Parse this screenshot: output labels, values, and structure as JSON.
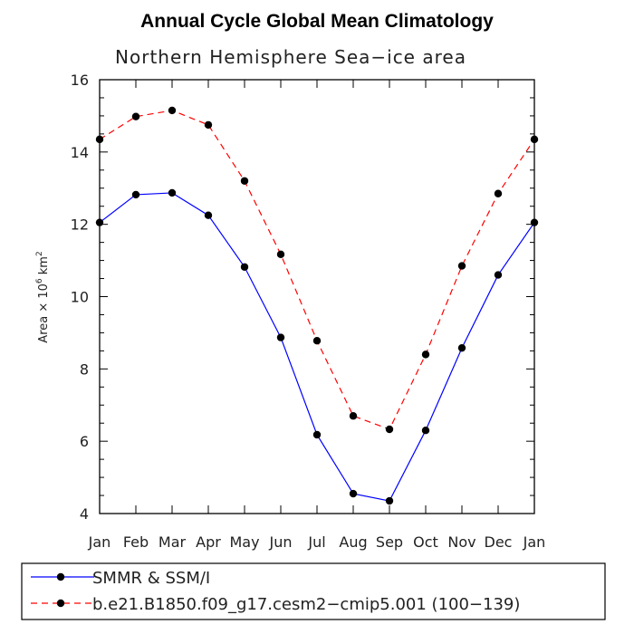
{
  "chart_data": {
    "type": "line",
    "title": "Annual Cycle Global Mean Climatology",
    "subtitle": "Northern Hemisphere Sea−ice area",
    "ylabel": {
      "prefix": "Area × 10",
      "exp1": "6",
      "unit": " km",
      "exp2": "2"
    },
    "categories": [
      "Jan",
      "Feb",
      "Mar",
      "Apr",
      "May",
      "Jun",
      "Jul",
      "Aug",
      "Sep",
      "Oct",
      "Nov",
      "Dec",
      "Jan"
    ],
    "ylim": [
      4,
      16
    ],
    "yticks": [
      "4",
      "6",
      "8",
      "10",
      "12",
      "14",
      "16"
    ],
    "grid": false,
    "legend_position": "bottom",
    "series": [
      {
        "name": "SMMR & SSM/I",
        "color": "#0000ff",
        "dash": "solid",
        "values": [
          12.05,
          12.82,
          12.87,
          12.25,
          10.82,
          8.87,
          6.18,
          4.55,
          4.35,
          6.3,
          8.58,
          10.6,
          12.05
        ]
      },
      {
        "name": "b.e21.B1850.f09_g17.cesm2−cmip5.001 (100−139)",
        "color": "#ff0000",
        "dash": "dashed",
        "values": [
          14.35,
          14.98,
          15.15,
          14.75,
          13.2,
          11.17,
          8.78,
          6.7,
          6.33,
          8.4,
          10.85,
          12.85,
          14.35
        ]
      }
    ]
  }
}
